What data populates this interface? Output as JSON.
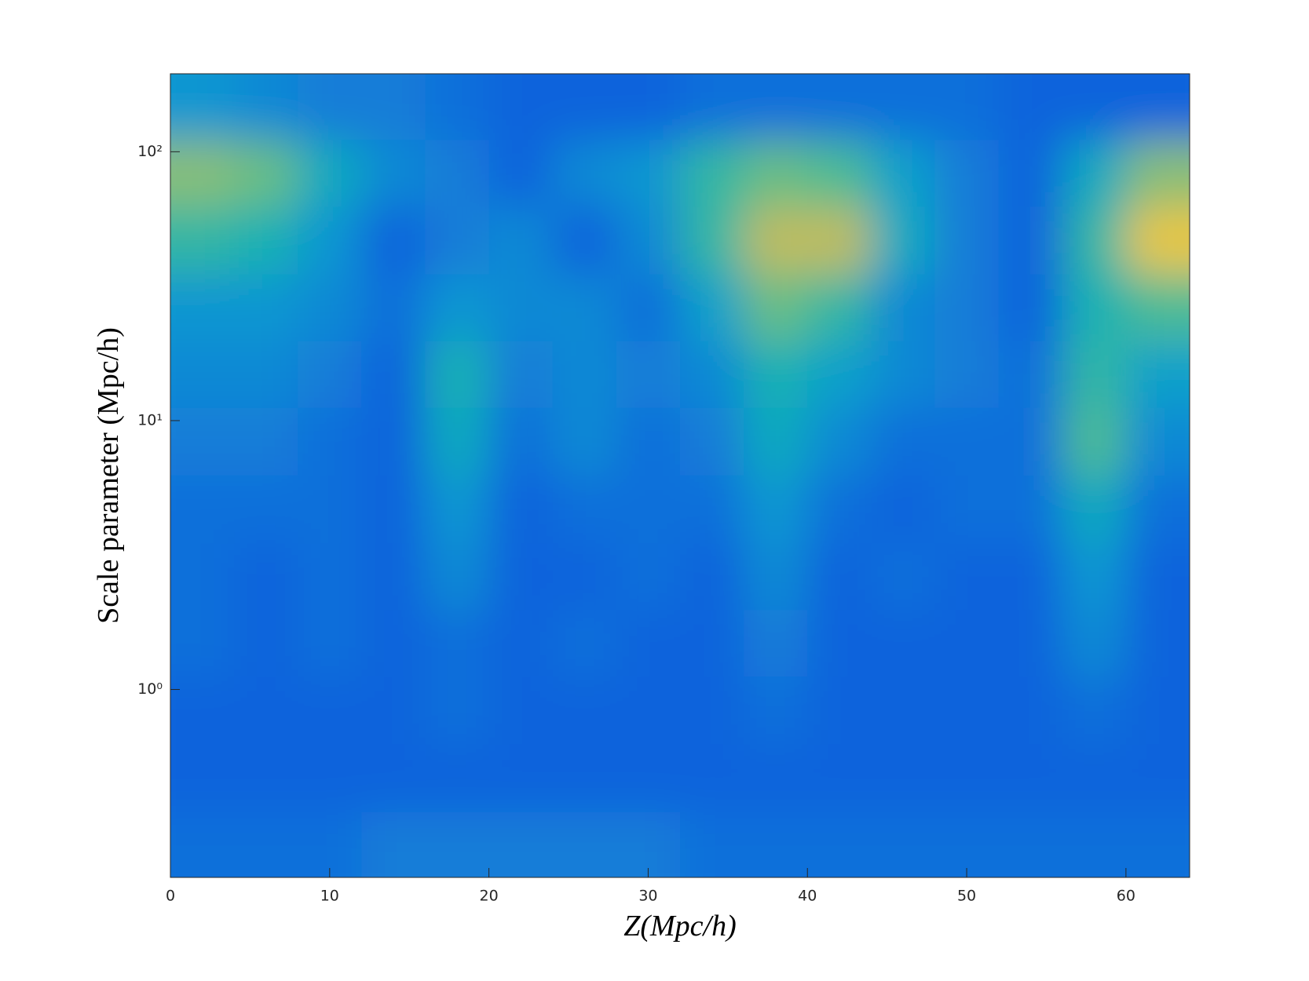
{
  "chart_data": {
    "type": "heatmap",
    "xlabel": "Z(Mpc/h)",
    "ylabel": "Scale parameter (Mpc/h)",
    "colormap": "parula",
    "clim": [
      0,
      1
    ],
    "xscale": "linear",
    "yscale": "log",
    "xlim": [
      0,
      64
    ],
    "ylim": [
      0.2,
      195
    ],
    "xticks": [
      0,
      10,
      20,
      30,
      40,
      50,
      60
    ],
    "yticks": [
      {
        "value": 1,
        "label": "10⁰"
      },
      {
        "value": 10,
        "label": "10¹"
      },
      {
        "value": 100,
        "label": "10²"
      }
    ],
    "x": [
      2,
      6,
      10,
      14,
      18,
      22,
      26,
      30,
      34,
      38,
      42,
      46,
      50,
      54,
      58,
      62
    ],
    "y": [
      148,
      83,
      47,
      26,
      15,
      8.3,
      4.7,
      2.6,
      1.5,
      0.83,
      0.47,
      0.26
    ],
    "z": [
      [
        0.35,
        0.3,
        0.25,
        0.25,
        0.2,
        0.15,
        0.15,
        0.15,
        0.2,
        0.2,
        0.2,
        0.2,
        0.2,
        0.15,
        0.15,
        0.15
      ],
      [
        0.7,
        0.65,
        0.45,
        0.3,
        0.25,
        0.15,
        0.3,
        0.35,
        0.55,
        0.65,
        0.6,
        0.4,
        0.25,
        0.15,
        0.45,
        0.7
      ],
      [
        0.55,
        0.5,
        0.35,
        0.15,
        0.25,
        0.3,
        0.15,
        0.3,
        0.55,
        0.8,
        0.8,
        0.45,
        0.25,
        0.15,
        0.55,
        0.9
      ],
      [
        0.35,
        0.35,
        0.3,
        0.2,
        0.35,
        0.3,
        0.3,
        0.2,
        0.4,
        0.65,
        0.55,
        0.3,
        0.25,
        0.15,
        0.5,
        0.6
      ],
      [
        0.3,
        0.3,
        0.25,
        0.15,
        0.5,
        0.25,
        0.3,
        0.25,
        0.3,
        0.5,
        0.4,
        0.3,
        0.25,
        0.2,
        0.55,
        0.4
      ],
      [
        0.25,
        0.25,
        0.2,
        0.15,
        0.45,
        0.2,
        0.3,
        0.2,
        0.25,
        0.45,
        0.3,
        0.2,
        0.2,
        0.2,
        0.6,
        0.3
      ],
      [
        0.2,
        0.2,
        0.2,
        0.15,
        0.35,
        0.15,
        0.2,
        0.2,
        0.2,
        0.35,
        0.2,
        0.15,
        0.2,
        0.2,
        0.45,
        0.2
      ],
      [
        0.2,
        0.15,
        0.2,
        0.15,
        0.3,
        0.15,
        0.15,
        0.2,
        0.15,
        0.3,
        0.15,
        0.2,
        0.15,
        0.15,
        0.35,
        0.15
      ],
      [
        0.2,
        0.15,
        0.2,
        0.15,
        0.2,
        0.15,
        0.2,
        0.15,
        0.15,
        0.25,
        0.15,
        0.15,
        0.15,
        0.15,
        0.3,
        0.15
      ],
      [
        0.15,
        0.15,
        0.15,
        0.15,
        0.2,
        0.15,
        0.15,
        0.15,
        0.15,
        0.2,
        0.15,
        0.15,
        0.15,
        0.15,
        0.2,
        0.15
      ],
      [
        0.15,
        0.15,
        0.15,
        0.15,
        0.15,
        0.15,
        0.15,
        0.15,
        0.15,
        0.15,
        0.15,
        0.15,
        0.15,
        0.15,
        0.15,
        0.15
      ],
      [
        0.2,
        0.2,
        0.2,
        0.25,
        0.25,
        0.25,
        0.25,
        0.25,
        0.2,
        0.2,
        0.2,
        0.2,
        0.2,
        0.2,
        0.2,
        0.2
      ]
    ]
  }
}
